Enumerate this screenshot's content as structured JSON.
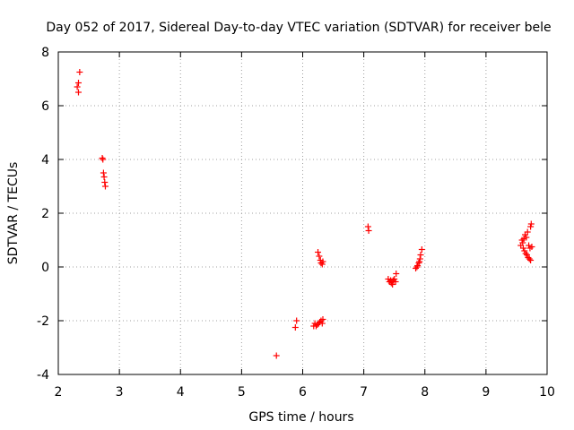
{
  "chart_data": {
    "type": "scatter",
    "title": "Day 052 of 2017, Sidereal Day-to-day VTEC variation (SDTVAR) for receiver bele",
    "xlabel": "GPS time / hours",
    "ylabel": "SDTVAR / TECUs",
    "xlim": [
      2,
      10
    ],
    "ylim": [
      -4,
      8
    ],
    "xticks": [
      2,
      3,
      4,
      5,
      6,
      7,
      8,
      9,
      10
    ],
    "yticks": [
      -4,
      -2,
      0,
      2,
      4,
      6,
      8
    ],
    "xtick_labels": [
      "2",
      "3",
      "4",
      "5",
      "6",
      "7",
      "8",
      "9",
      "10"
    ],
    "ytick_labels": [
      "-4",
      "-2",
      "0",
      "2",
      "4",
      "6",
      "8"
    ],
    "grid": true,
    "marker": "+",
    "color": "#ff0000",
    "series": [
      {
        "name": "SDTVAR",
        "points": [
          [
            2.35,
            7.25
          ],
          [
            2.33,
            6.85
          ],
          [
            2.31,
            6.7
          ],
          [
            2.33,
            6.5
          ],
          [
            2.72,
            4.05
          ],
          [
            2.73,
            4.0
          ],
          [
            2.74,
            3.5
          ],
          [
            2.75,
            3.35
          ],
          [
            2.76,
            3.15
          ],
          [
            2.77,
            3.0
          ],
          [
            5.57,
            -3.3
          ],
          [
            5.88,
            -2.25
          ],
          [
            5.9,
            -2.0
          ],
          [
            6.18,
            -2.2
          ],
          [
            6.2,
            -2.1
          ],
          [
            6.22,
            -2.2
          ],
          [
            6.24,
            -2.15
          ],
          [
            6.26,
            -2.1
          ],
          [
            6.28,
            -2.05
          ],
          [
            6.3,
            -2.0
          ],
          [
            6.32,
            -2.1
          ],
          [
            6.33,
            -1.95
          ],
          [
            6.25,
            0.55
          ],
          [
            6.27,
            0.4
          ],
          [
            6.29,
            0.25
          ],
          [
            6.3,
            0.15
          ],
          [
            6.32,
            0.1
          ],
          [
            6.33,
            0.2
          ],
          [
            7.07,
            1.5
          ],
          [
            7.08,
            1.35
          ],
          [
            7.4,
            -0.45
          ],
          [
            7.42,
            -0.55
          ],
          [
            7.44,
            -0.5
          ],
          [
            7.45,
            -0.6
          ],
          [
            7.46,
            -0.55
          ],
          [
            7.47,
            -0.65
          ],
          [
            7.48,
            -0.5
          ],
          [
            7.5,
            -0.45
          ],
          [
            7.52,
            -0.55
          ],
          [
            7.53,
            -0.25
          ],
          [
            7.85,
            -0.05
          ],
          [
            7.87,
            0.0
          ],
          [
            7.88,
            0.05
          ],
          [
            7.9,
            0.15
          ],
          [
            7.91,
            0.2
          ],
          [
            7.92,
            0.3
          ],
          [
            7.93,
            0.45
          ],
          [
            7.95,
            0.65
          ],
          [
            9.57,
            0.8
          ],
          [
            9.59,
            1.0
          ],
          [
            9.6,
            0.9
          ],
          [
            9.61,
            0.7
          ],
          [
            9.62,
            1.05
          ],
          [
            9.63,
            0.6
          ],
          [
            9.64,
            1.2
          ],
          [
            9.65,
            0.5
          ],
          [
            9.66,
            1.1
          ],
          [
            9.67,
            0.45
          ],
          [
            9.68,
            1.3
          ],
          [
            9.69,
            0.35
          ],
          [
            9.7,
            0.8
          ],
          [
            9.71,
            0.3
          ],
          [
            9.72,
            0.7
          ],
          [
            9.73,
            1.5
          ],
          [
            9.73,
            0.25
          ],
          [
            9.74,
            1.6
          ],
          [
            9.75,
            0.75
          ]
        ]
      }
    ]
  }
}
